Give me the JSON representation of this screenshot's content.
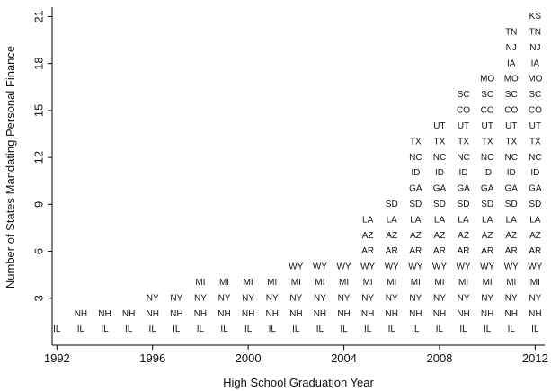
{
  "chart_data": {
    "type": "scatter",
    "title": "",
    "xlabel": "High School Graduation Year",
    "ylabel": "Number of States Mandating Personal Finance",
    "xlim": [
      1991.8,
      2012.4
    ],
    "ylim": [
      0,
      21.6
    ],
    "xticks": [
      1992,
      1996,
      2000,
      2004,
      2008,
      2012
    ],
    "yticks": [
      3,
      6,
      9,
      12,
      15,
      18,
      21
    ],
    "grid": false,
    "legend": "none",
    "state_adoption_order": [
      {
        "state": "IL",
        "year": 1992
      },
      {
        "state": "NH",
        "year": 1993
      },
      {
        "state": "NY",
        "year": 1996
      },
      {
        "state": "MI",
        "year": 1998
      },
      {
        "state": "WY",
        "year": 2002
      },
      {
        "state": "AR",
        "year": 2005
      },
      {
        "state": "AZ",
        "year": 2005
      },
      {
        "state": "LA",
        "year": 2005
      },
      {
        "state": "SD",
        "year": 2006
      },
      {
        "state": "GA",
        "year": 2007
      },
      {
        "state": "ID",
        "year": 2007
      },
      {
        "state": "NC",
        "year": 2007
      },
      {
        "state": "TX",
        "year": 2007
      },
      {
        "state": "UT",
        "year": 2008
      },
      {
        "state": "CO",
        "year": 2009
      },
      {
        "state": "SC",
        "year": 2009
      },
      {
        "state": "MO",
        "year": 2010
      },
      {
        "state": "IA",
        "year": 2011
      },
      {
        "state": "NJ",
        "year": 2011
      },
      {
        "state": "TN",
        "year": 2011
      },
      {
        "state": "KS",
        "year": 2012
      }
    ],
    "counts_by_year": [
      {
        "year": 1992,
        "count": 1
      },
      {
        "year": 1993,
        "count": 2
      },
      {
        "year": 1994,
        "count": 2
      },
      {
        "year": 1995,
        "count": 2
      },
      {
        "year": 1996,
        "count": 3
      },
      {
        "year": 1997,
        "count": 3
      },
      {
        "year": 1998,
        "count": 4
      },
      {
        "year": 1999,
        "count": 4
      },
      {
        "year": 2000,
        "count": 4
      },
      {
        "year": 2001,
        "count": 4
      },
      {
        "year": 2002,
        "count": 5
      },
      {
        "year": 2003,
        "count": 5
      },
      {
        "year": 2004,
        "count": 5
      },
      {
        "year": 2005,
        "count": 8
      },
      {
        "year": 2006,
        "count": 9
      },
      {
        "year": 2007,
        "count": 13
      },
      {
        "year": 2008,
        "count": 14
      },
      {
        "year": 2009,
        "count": 16
      },
      {
        "year": 2010,
        "count": 17
      },
      {
        "year": 2011,
        "count": 20
      },
      {
        "year": 2012,
        "count": 21
      }
    ]
  }
}
